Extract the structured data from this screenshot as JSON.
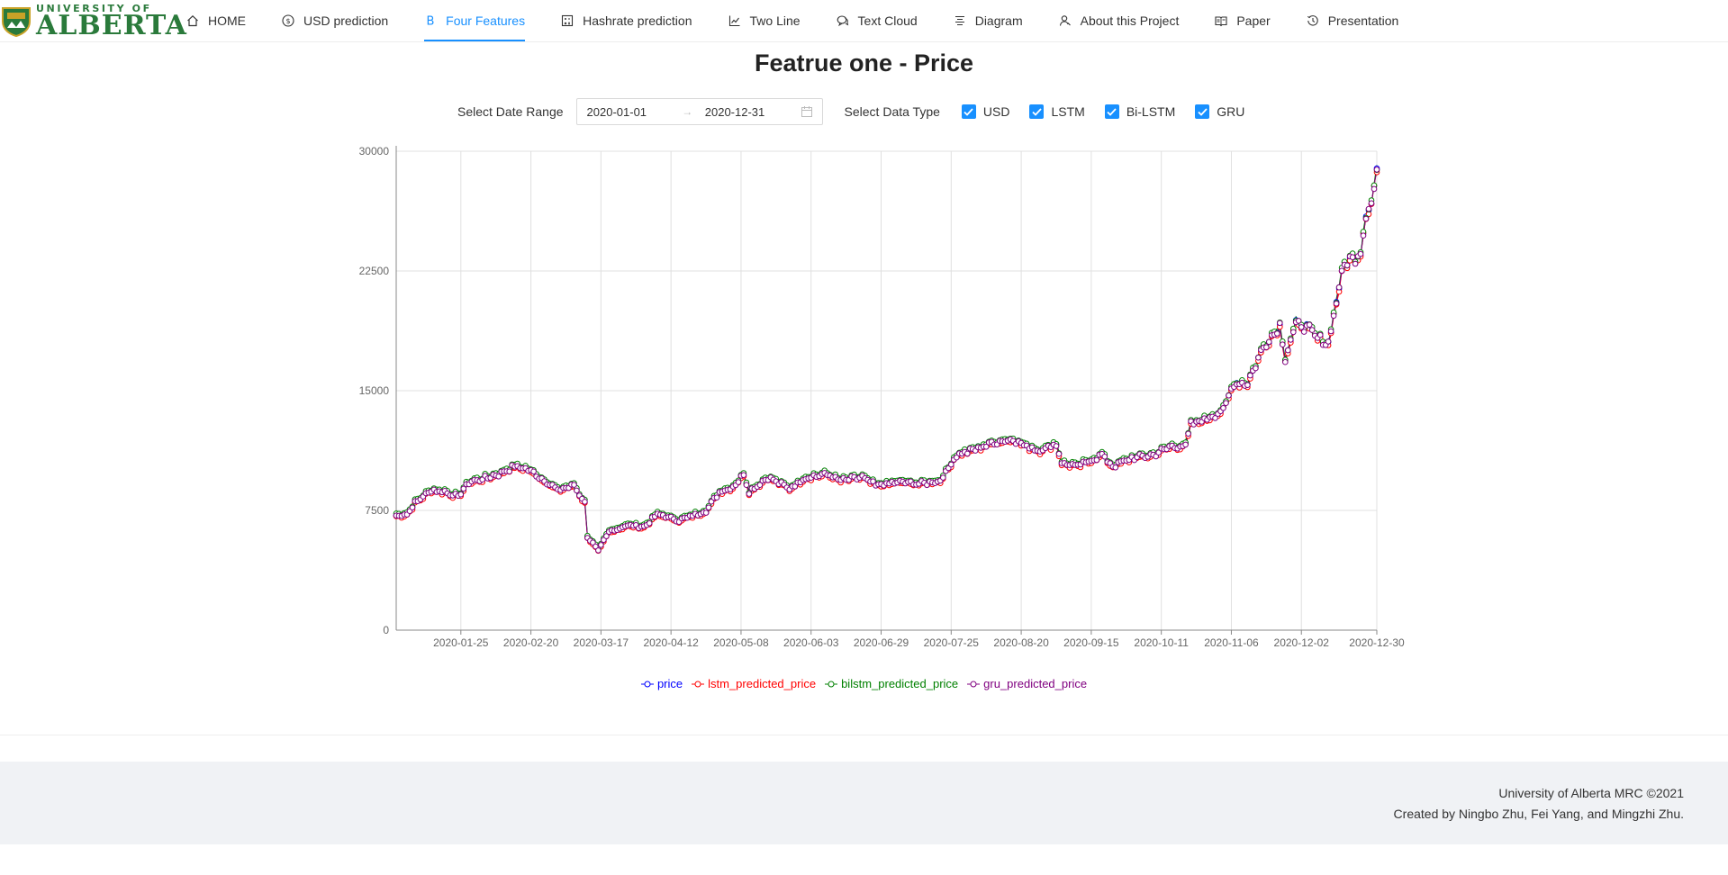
{
  "logo": {
    "line1": "UNIVERSITY OF",
    "line2": "ALBERTA"
  },
  "nav": [
    {
      "label": "HOME",
      "icon": "home-icon"
    },
    {
      "label": "USD prediction",
      "icon": "dollar-icon"
    },
    {
      "label": "Four Features",
      "icon": "bold-b-icon",
      "active": true
    },
    {
      "label": "Hashrate prediction",
      "icon": "calculator-icon"
    },
    {
      "label": "Two Line",
      "icon": "line-chart-icon"
    },
    {
      "label": "Text Cloud",
      "icon": "comments-icon"
    },
    {
      "label": "Diagram",
      "icon": "align-center-icon"
    },
    {
      "label": "About this Project",
      "icon": "team-icon"
    },
    {
      "label": "Paper",
      "icon": "read-icon"
    },
    {
      "label": "Presentation",
      "icon": "history-icon"
    }
  ],
  "title": "Featrue one - Price",
  "controls": {
    "date_label": "Select Date Range",
    "start_date": "2020-01-01",
    "end_date": "2020-12-31",
    "type_label": "Select Data Type",
    "checkboxes": [
      {
        "label": "USD",
        "checked": true
      },
      {
        "label": "LSTM",
        "checked": true
      },
      {
        "label": "Bi-LSTM",
        "checked": true
      },
      {
        "label": "GRU",
        "checked": true
      }
    ]
  },
  "chart_data": {
    "type": "line",
    "x_ticks": [
      "2020-01-25",
      "2020-02-20",
      "2020-03-17",
      "2020-04-12",
      "2020-05-08",
      "2020-06-03",
      "2020-06-29",
      "2020-07-25",
      "2020-08-20",
      "2020-09-15",
      "2020-10-11",
      "2020-11-06",
      "2020-12-02",
      "2020-12-30"
    ],
    "y_ticks": [
      "0",
      "7500",
      "15000",
      "22500",
      "30000"
    ],
    "ylim": [
      0,
      30000
    ],
    "xlim": [
      "2020-01-01",
      "2020-12-30"
    ],
    "grid": true,
    "legend_position": "bottom",
    "anchors": [
      [
        "2020-01-01",
        7200
      ],
      [
        "2020-01-05",
        7300
      ],
      [
        "2020-01-08",
        8000
      ],
      [
        "2020-01-14",
        8800
      ],
      [
        "2020-01-19",
        8700
      ],
      [
        "2020-01-24",
        8400
      ],
      [
        "2020-01-28",
        9300
      ],
      [
        "2020-02-02",
        9500
      ],
      [
        "2020-02-08",
        9800
      ],
      [
        "2020-02-14",
        10300
      ],
      [
        "2020-02-19",
        10100
      ],
      [
        "2020-02-26",
        9300
      ],
      [
        "2020-03-01",
        8800
      ],
      [
        "2020-03-07",
        9100
      ],
      [
        "2020-03-11",
        8000
      ],
      [
        "2020-03-12",
        5900
      ],
      [
        "2020-03-16",
        5000
      ],
      [
        "2020-03-20",
        6200
      ],
      [
        "2020-03-27",
        6600
      ],
      [
        "2020-04-02",
        6500
      ],
      [
        "2020-04-07",
        7300
      ],
      [
        "2020-04-15",
        6900
      ],
      [
        "2020-04-25",
        7500
      ],
      [
        "2020-04-30",
        8700
      ],
      [
        "2020-05-05",
        9000
      ],
      [
        "2020-05-09",
        9800
      ],
      [
        "2020-05-11",
        8700
      ],
      [
        "2020-05-18",
        9600
      ],
      [
        "2020-05-26",
        8900
      ],
      [
        "2020-06-01",
        9600
      ],
      [
        "2020-06-09",
        9800
      ],
      [
        "2020-06-14",
        9400
      ],
      [
        "2020-06-22",
        9600
      ],
      [
        "2020-06-27",
        9100
      ],
      [
        "2020-07-06",
        9300
      ],
      [
        "2020-07-14",
        9200
      ],
      [
        "2020-07-21",
        9400
      ],
      [
        "2020-07-27",
        11000
      ],
      [
        "2020-08-02",
        11300
      ],
      [
        "2020-08-10",
        11800
      ],
      [
        "2020-08-17",
        12000
      ],
      [
        "2020-08-21",
        11600
      ],
      [
        "2020-08-27",
        11300
      ],
      [
        "2020-09-02",
        11700
      ],
      [
        "2020-09-04",
        10500
      ],
      [
        "2020-09-10",
        10300
      ],
      [
        "2020-09-19",
        11000
      ],
      [
        "2020-09-23",
        10300
      ],
      [
        "2020-09-30",
        10800
      ],
      [
        "2020-10-08",
        11000
      ],
      [
        "2020-10-14",
        11500
      ],
      [
        "2020-10-20",
        11600
      ],
      [
        "2020-10-22",
        12900
      ],
      [
        "2020-10-28",
        13300
      ],
      [
        "2020-11-03",
        13800
      ],
      [
        "2020-11-07",
        15500
      ],
      [
        "2020-11-12",
        15500
      ],
      [
        "2020-11-18",
        17800
      ],
      [
        "2020-11-24",
        19100
      ],
      [
        "2020-11-26",
        17100
      ],
      [
        "2020-11-30",
        19200
      ],
      [
        "2020-12-04",
        19000
      ],
      [
        "2020-12-08",
        18300
      ],
      [
        "2020-12-12",
        18000
      ],
      [
        "2020-12-16",
        21500
      ],
      [
        "2020-12-18",
        23000
      ],
      [
        "2020-12-22",
        23400
      ],
      [
        "2020-12-24",
        23700
      ],
      [
        "2020-12-26",
        26200
      ],
      [
        "2020-12-28",
        26700
      ],
      [
        "2020-12-30",
        28900
      ]
    ],
    "series": [
      {
        "name": "price",
        "color": "#0000ff",
        "offset": 0
      },
      {
        "name": "lstm_predicted_price",
        "color": "#ff0000",
        "offset": -120
      },
      {
        "name": "bilstm_predicted_price",
        "color": "#008000",
        "offset": 90
      },
      {
        "name": "gru_predicted_price",
        "color": "#800080",
        "offset": -40
      }
    ]
  },
  "footer": {
    "line1": "University of Alberta MRC ©2021",
    "line2": "Created by Ningbo Zhu, Fei Yang, and Mingzhi Zhu."
  }
}
